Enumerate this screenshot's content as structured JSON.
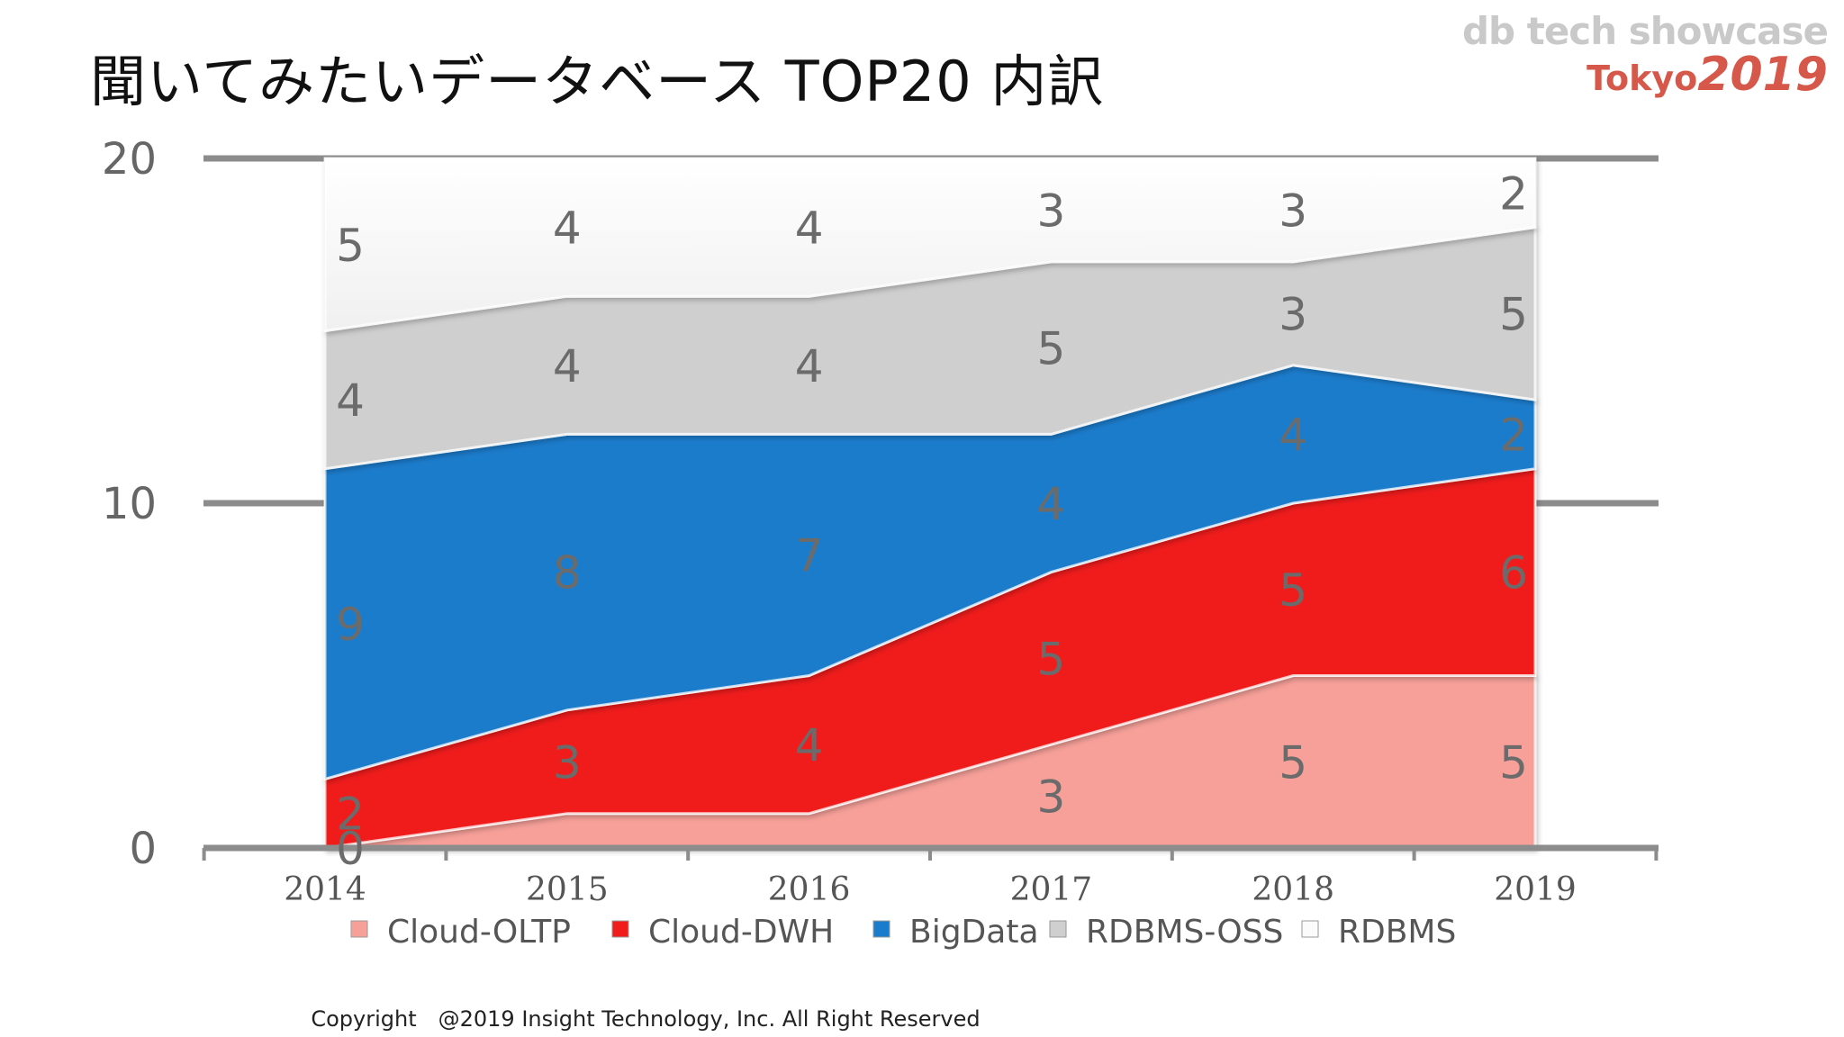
{
  "title": "聞いてみたいデータベース TOP20 内訳",
  "logo": {
    "top": "db tech showcase",
    "city": "Tokyo",
    "year": "2019"
  },
  "copyright": "Copyright　@2019 Insight Technology, Inc.  All Right Reserved",
  "chart_data": {
    "type": "area",
    "stacked": true,
    "categories": [
      "2014",
      "2015",
      "2016",
      "2017",
      "2018",
      "2019"
    ],
    "series": [
      {
        "name": "Cloud-OLTP",
        "color": "#f7a099",
        "values": [
          0,
          1,
          1,
          3,
          5,
          5
        ],
        "labels": [
          "0",
          "",
          "",
          "3",
          "5",
          "5"
        ]
      },
      {
        "name": "Cloud-DWH",
        "color": "#f01c1c",
        "values": [
          2,
          3,
          4,
          5,
          5,
          6
        ],
        "labels": [
          "2",
          "3",
          "4",
          "5",
          "5",
          "6"
        ]
      },
      {
        "name": "BigData",
        "color": "#1a7ccc",
        "values": [
          9,
          8,
          7,
          4,
          4,
          2
        ],
        "labels": [
          "9",
          "8",
          "7",
          "4",
          "4",
          "2"
        ]
      },
      {
        "name": "RDBMS-OSS",
        "color": "#cfcfcf",
        "values": [
          4,
          4,
          4,
          5,
          3,
          5
        ],
        "labels": [
          "4",
          "4",
          "4",
          "5",
          "3",
          "5"
        ]
      },
      {
        "name": "RDBMS",
        "color": "#fbfbfb",
        "values": [
          5,
          4,
          4,
          3,
          3,
          2
        ],
        "labels": [
          "5",
          "4",
          "4",
          "3",
          "3",
          "2"
        ]
      }
    ],
    "yticks": [
      "0",
      "10",
      "20"
    ],
    "ylim": [
      0,
      20
    ],
    "legend_position": "bottom",
    "xlabel": "",
    "ylabel": ""
  }
}
